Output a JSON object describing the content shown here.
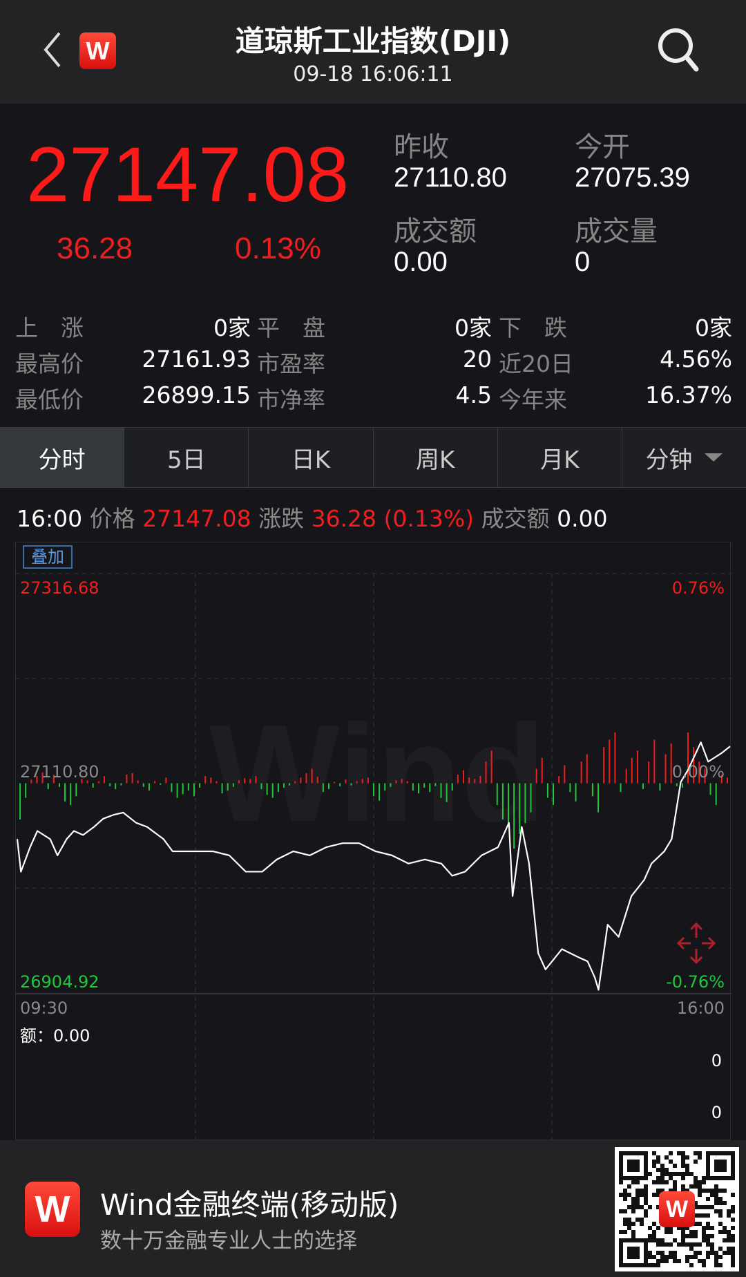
{
  "header": {
    "title": "道琼斯工业指数(DJI)",
    "datetime": "09-18 16:06:11",
    "logo": "W",
    "back_icon": "chevron-left-icon",
    "search_icon": "search-icon"
  },
  "quote": {
    "price": "27147.08",
    "change": "36.28",
    "change_pct": "0.13%",
    "prev_close_label": "昨收",
    "prev_close": "27110.80",
    "open_label": "今开",
    "open": "27075.39",
    "turnover_label": "成交额",
    "turnover": "0.00",
    "volume_label": "成交量",
    "volume": "0"
  },
  "stats": [
    [
      {
        "label": "上　涨",
        "value": "0家"
      },
      {
        "label": "平　盘",
        "value": "0家"
      },
      {
        "label": "下　跌",
        "value": "0家"
      }
    ],
    [
      {
        "label": "最高价",
        "value": "27161.93"
      },
      {
        "label": "市盈率",
        "value": "20"
      },
      {
        "label": "近20日",
        "value": "4.56%"
      }
    ],
    [
      {
        "label": "最低价",
        "value": "26899.15"
      },
      {
        "label": "市净率",
        "value": "4.5"
      },
      {
        "label": "今年来",
        "value": "16.37%"
      }
    ]
  ],
  "tabs": [
    "分时",
    "5日",
    "日K",
    "周K",
    "月K",
    "分钟"
  ],
  "info": {
    "time": "16:00",
    "price_label": "价格",
    "price": "27147.08",
    "change_label": "涨跌",
    "change": "36.28 (0.13%)",
    "turnover_label": "成交额",
    "turnover": "0.00"
  },
  "chart": {
    "overlay_button": "叠加",
    "watermark": "Wind",
    "volume_label": "额：0.00",
    "volume_axis_top": "0",
    "volume_axis_bottom": "0"
  },
  "colors": {
    "up": "#f01e1e",
    "down": "#1ec83c",
    "line": "#ffffff"
  },
  "chart_data": {
    "type": "line",
    "y_left_labels": {
      "top": "27316.68",
      "mid": "27110.80",
      "bottom": "26904.92"
    },
    "y_right_labels": {
      "top": "0.76%",
      "mid": "0.00%",
      "bottom": "-0.76%"
    },
    "x_labels": {
      "start": "09:30",
      "end": "16:00"
    },
    "ylim": [
      26904.92,
      27316.68
    ],
    "baseline": 27110.8,
    "times": [
      "09:30",
      "09:32",
      "09:37",
      "09:41",
      "09:48",
      "09:52",
      "09:57",
      "10:01",
      "10:06",
      "10:12",
      "10:17",
      "10:23",
      "10:28",
      "10:35",
      "10:41",
      "10:50",
      "10:55",
      "11:08",
      "11:17",
      "11:26",
      "11:35",
      "11:44",
      "11:52",
      "12:01",
      "12:10",
      "12:19",
      "12:28",
      "12:37",
      "12:46",
      "12:55",
      "13:04",
      "13:13",
      "13:22",
      "13:28",
      "13:35",
      "13:44",
      "13:53",
      "13:59",
      "14:01",
      "14:06",
      "14:10",
      "14:15",
      "14:19",
      "14:28",
      "14:37",
      "14:42",
      "14:46",
      "14:48",
      "14:53",
      "14:59",
      "15:06",
      "15:13",
      "15:17",
      "15:24",
      "15:28",
      "15:33",
      "15:37",
      "15:44",
      "15:48",
      "15:55",
      "16:00"
    ],
    "prices": [
      27056,
      27024,
      27048,
      27064,
      27056,
      27040,
      27056,
      27064,
      27060,
      27068,
      27076,
      27080,
      27082,
      27072,
      27068,
      27056,
      27044,
      27044,
      27044,
      27040,
      27024,
      27024,
      27036,
      27044,
      27040,
      27048,
      27052,
      27052,
      27044,
      27040,
      27032,
      27036,
      27032,
      27020,
      27024,
      27040,
      27048,
      27072,
      27000,
      27068,
      27032,
      26944,
      26928,
      26948,
      26940,
      26936,
      26920,
      26908,
      26972,
      26960,
      27000,
      27016,
      27032,
      27044,
      27056,
      27112,
      27124,
      27151,
      27132,
      27140,
      27147
    ],
    "pressure_bars": [
      -50,
      -20,
      5,
      10,
      15,
      -8,
      12,
      -5,
      -25,
      -30,
      -18,
      6,
      4,
      -6,
      3,
      10,
      -4,
      -8,
      -3,
      12,
      14,
      4,
      -5,
      -10,
      3,
      -2,
      8,
      -12,
      -20,
      -15,
      -10,
      -18,
      -6,
      10,
      8,
      3,
      -14,
      -10,
      -5,
      4,
      7,
      6,
      10,
      -8,
      -16,
      -20,
      -12,
      -6,
      -3,
      3,
      8,
      14,
      20,
      9,
      -12,
      -8,
      2,
      -4,
      5,
      -3,
      3,
      6,
      8,
      -18,
      -24,
      -10,
      -5,
      4,
      6,
      3,
      -10,
      -14,
      -6,
      -12,
      -4,
      -20,
      -26,
      -10,
      12,
      18,
      8,
      6,
      10,
      30,
      45,
      -30,
      -50,
      -60,
      -90,
      -70,
      -55,
      -40,
      20,
      35,
      -20,
      -30,
      10,
      25,
      -12,
      -25,
      30,
      40,
      -18,
      -40,
      50,
      60,
      70,
      -12,
      20,
      35,
      45,
      -8,
      30,
      60,
      -10,
      40,
      55,
      -4,
      -6,
      70,
      50,
      30,
      20,
      -16,
      -30,
      12,
      8
    ]
  },
  "footer": {
    "logo": "W",
    "title": "Wind金融终端(移动版)",
    "subtitle": "数十万金融专业人士的选择",
    "qr_logo": "W"
  }
}
